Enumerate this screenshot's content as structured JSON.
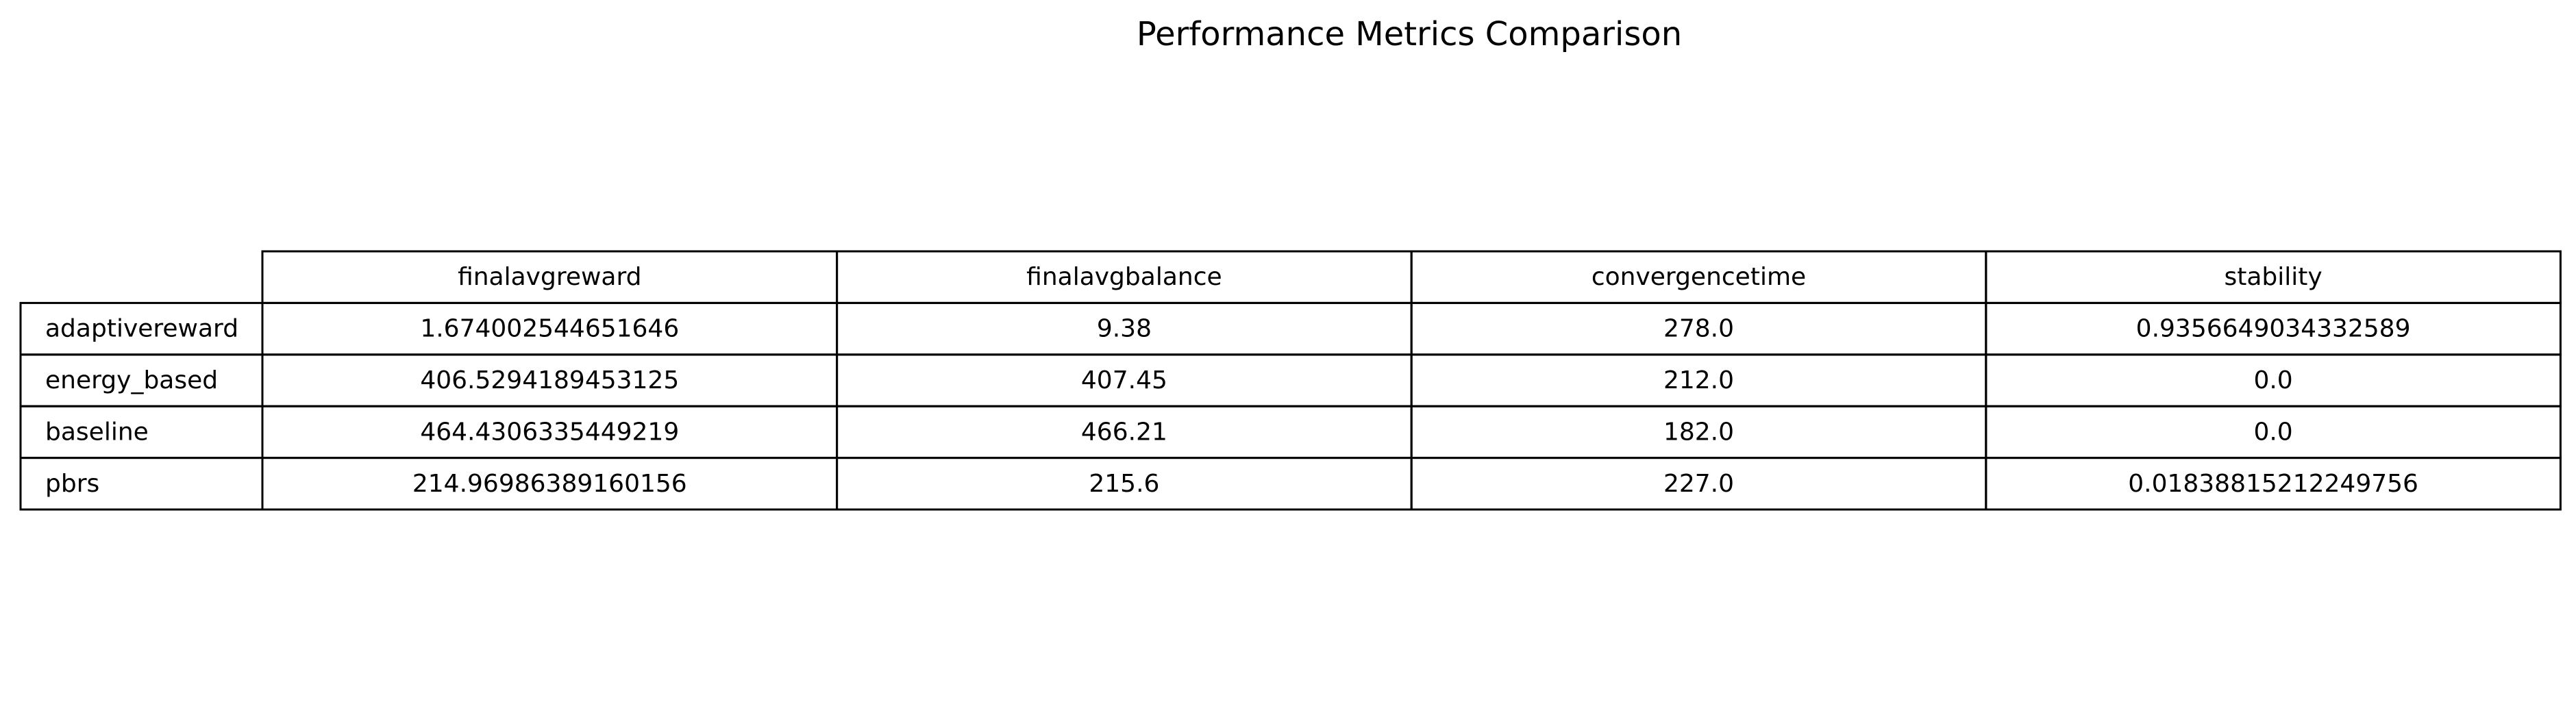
{
  "chart_data": {
    "type": "table",
    "title": "Performance Metrics Comparison",
    "columns": [
      "finalavgreward",
      "finalavgbalance",
      "convergencetime",
      "stability"
    ],
    "rows": [
      {
        "label": "adaptivereward",
        "values": [
          "1.674002544651646",
          "9.38",
          "278.0",
          "0.9356649034332589"
        ]
      },
      {
        "label": "energy_based",
        "values": [
          "406.5294189453125",
          "407.45",
          "212.0",
          "0.0"
        ]
      },
      {
        "label": "baseline",
        "values": [
          "464.4306335449219",
          "466.21",
          "182.0",
          "0.0"
        ]
      },
      {
        "label": "pbrs",
        "values": [
          "214.96986389160156",
          "215.6",
          "227.0",
          "0.01838815212249756"
        ]
      }
    ]
  }
}
